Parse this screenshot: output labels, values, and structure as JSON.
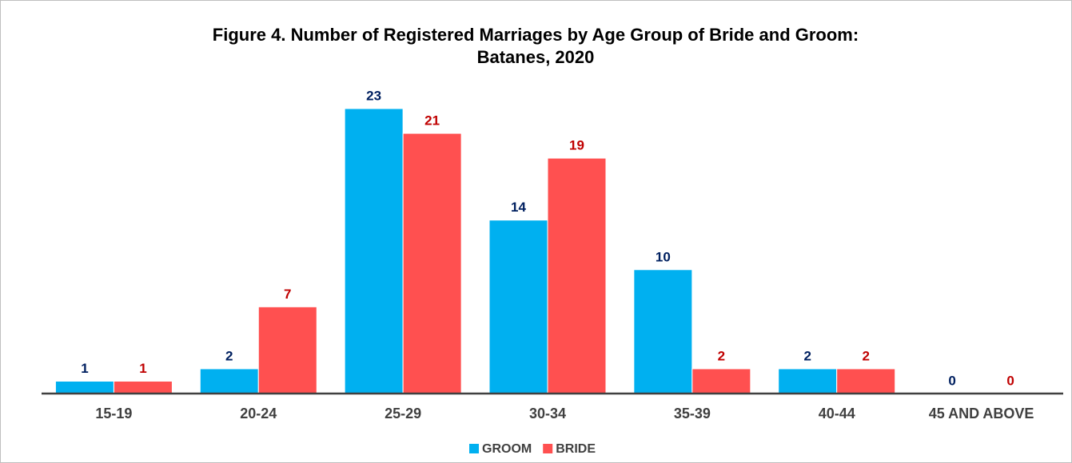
{
  "chart_data": {
    "type": "bar",
    "title": [
      "Figure 4. Number of Registered Marriages by Age Group of Bride and Groom:",
      "Batanes, 2020"
    ],
    "categories": [
      "15-19",
      "20-24",
      "25-29",
      "30-34",
      "35-39",
      "40-44",
      "45 AND ABOVE"
    ],
    "series": [
      {
        "name": "GROOM",
        "color": "#00b0f0",
        "label_color": "#002060",
        "values": [
          1,
          2,
          23,
          14,
          10,
          2,
          0
        ]
      },
      {
        "name": "BRIDE",
        "color": "#ff5050",
        "label_color": "#c00000",
        "values": [
          1,
          7,
          21,
          19,
          2,
          2,
          0
        ]
      }
    ],
    "legend": "bottom"
  }
}
